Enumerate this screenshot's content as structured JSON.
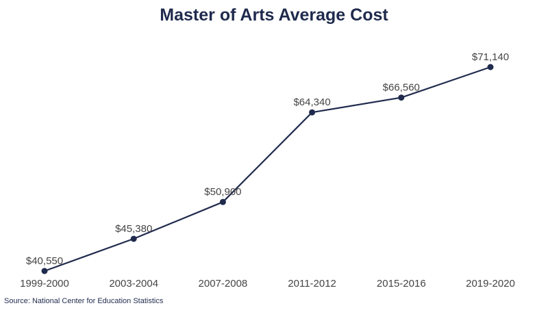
{
  "chart_data": {
    "type": "line",
    "title": "Master of Arts Average Cost",
    "categories": [
      "1999-2000",
      "2003-2004",
      "2007-2008",
      "2011-2012",
      "2015-2016",
      "2019-2020"
    ],
    "series": [
      {
        "values": [
          40550,
          45380,
          50900,
          64340,
          66560,
          71140
        ],
        "value_labels": [
          "$40,550",
          "$45,380",
          "$50,900",
          "$64,340",
          "$66,560",
          "$71,140"
        ]
      }
    ],
    "xlabel": "",
    "ylabel": "",
    "ylim": [
      40550,
      71140
    ],
    "grid": false,
    "legend": "none"
  },
  "colors": {
    "line": "#1f2a4d",
    "marker": "#1f2a4d",
    "label_text": "#444444",
    "title_text": "#1f2a4d"
  },
  "source": "Source: National Center for Education Statistics"
}
